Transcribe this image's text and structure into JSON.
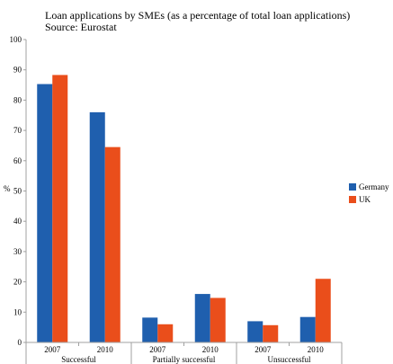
{
  "chart_data": {
    "type": "bar",
    "title": "Loan applications by SMEs (as a percentage of total loan applications)",
    "subtitle": "Source: Eurostat",
    "ylabel": "%",
    "xlabel": "",
    "ylim": [
      0,
      100
    ],
    "yticks": [
      0,
      10,
      20,
      30,
      40,
      50,
      60,
      70,
      80,
      90,
      100
    ],
    "grid": false,
    "legend_position": "right",
    "groups": [
      {
        "label": "Successful",
        "categories": [
          "2007",
          "2010"
        ]
      },
      {
        "label": "Partially successful",
        "categories": [
          "2007",
          "2010"
        ]
      },
      {
        "label": "Unsuccessful",
        "categories": [
          "2007",
          "2010"
        ]
      }
    ],
    "categories": [
      "2007",
      "2010",
      "2007",
      "2010",
      "2007",
      "2010"
    ],
    "series": [
      {
        "name": "Germany",
        "color": "#1f5fae",
        "values": [
          85.3,
          76.0,
          8.2,
          16.0,
          7.0,
          8.4
        ]
      },
      {
        "name": "UK",
        "color": "#ea4e1b",
        "values": [
          88.3,
          64.5,
          6.0,
          14.7,
          5.7,
          21.0
        ]
      }
    ]
  }
}
